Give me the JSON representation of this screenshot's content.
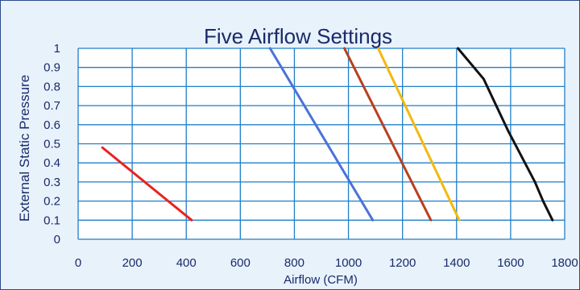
{
  "chart_data": {
    "type": "line",
    "title": "Five Airflow Settings",
    "xlabel": "Airflow (CFM)",
    "ylabel": "External Static Pressure",
    "xlim": [
      0,
      1800
    ],
    "ylim": [
      0,
      1
    ],
    "x_ticks": [
      "0",
      "200",
      "400",
      "600",
      "800",
      "1000",
      "1200",
      "1400",
      "1600",
      "1800"
    ],
    "y_ticks": [
      "0",
      "0.1",
      "0.2",
      "0.3",
      "0.4",
      "0.5",
      "0.6",
      "0.7",
      "0.8",
      "0.9",
      "1"
    ],
    "grid": true,
    "background_color": "#e8f2fb",
    "plot_color": "#ffffff",
    "grid_color": "#1f7fc8",
    "series": [
      {
        "color": "#e8231f",
        "points": [
          [
            90,
            0.48
          ],
          [
            420,
            0.1
          ]
        ]
      },
      {
        "color": "#4a73d8",
        "points": [
          [
            710,
            1.0
          ],
          [
            1090,
            0.1
          ]
        ]
      },
      {
        "color": "#b8401f",
        "points": [
          [
            985,
            1.0
          ],
          [
            1305,
            0.1
          ]
        ]
      },
      {
        "color": "#f2b90f",
        "points": [
          [
            1110,
            1.0
          ],
          [
            1410,
            0.1
          ]
        ]
      },
      {
        "color": "#111111",
        "points": [
          [
            1405,
            1.0
          ],
          [
            1500,
            0.84
          ],
          [
            1590,
            0.57
          ],
          [
            1690,
            0.3
          ],
          [
            1720,
            0.2
          ],
          [
            1755,
            0.1
          ]
        ]
      }
    ]
  }
}
